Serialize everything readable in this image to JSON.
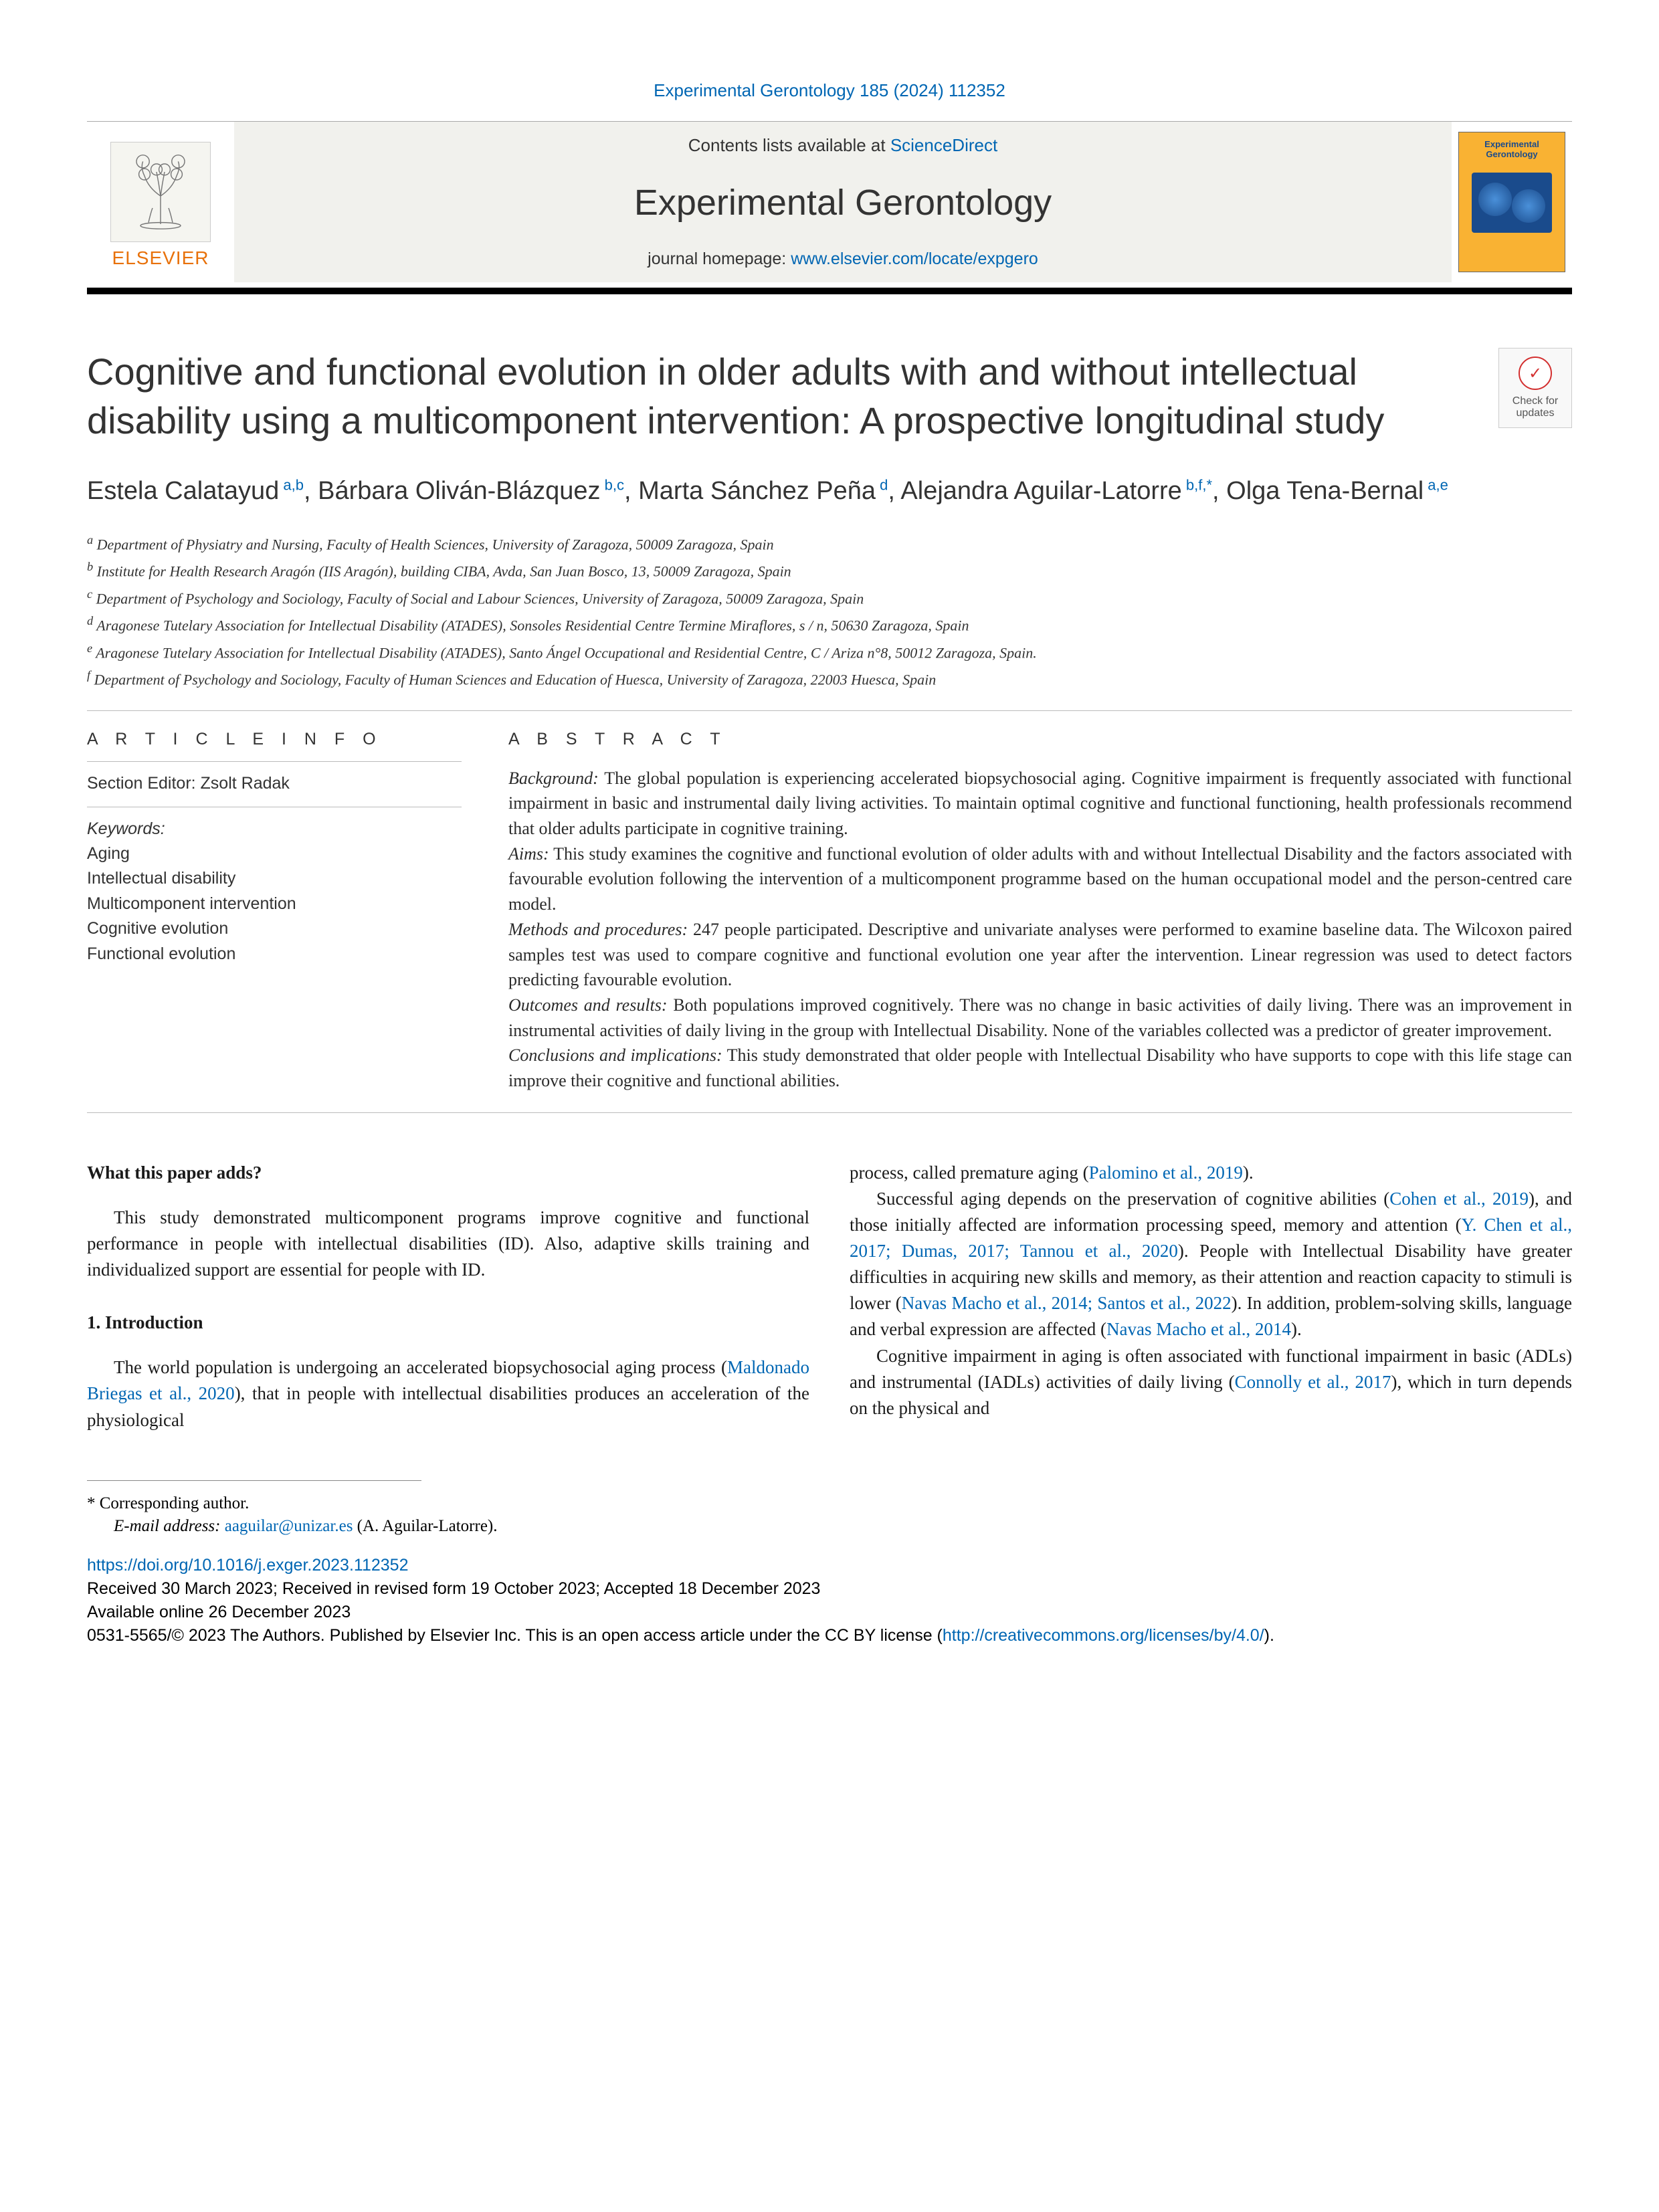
{
  "citation": "Experimental Gerontology 185 (2024) 112352",
  "header": {
    "contents_prefix": "Contents lists available at ",
    "contents_link": "ScienceDirect",
    "journal": "Experimental Gerontology",
    "homepage_prefix": "journal homepage: ",
    "homepage_link": "www.elsevier.com/locate/expgero",
    "publisher": "ELSEVIER",
    "cover_title": "Experimental Gerontology"
  },
  "updates_label": "Check for updates",
  "title": "Cognitive and functional evolution in older adults with and without intellectual disability using a multicomponent intervention: A prospective longitudinal study",
  "authors_html": "Estela Calatayud<sup> a,b</sup>, Bárbara Oliván-Blázquez<sup> b,c</sup>, Marta Sánchez Peña<sup> d</sup>, Alejandra Aguilar-Latorre<sup> b,f,*</sup>, Olga Tena-Bernal<sup> a,e</sup>",
  "affiliations": [
    "a Department of Physiatry and Nursing, Faculty of Health Sciences, University of Zaragoza, 50009 Zaragoza, Spain",
    "b Institute for Health Research Aragón (IIS Aragón), building CIBA, Avda, San Juan Bosco, 13, 50009 Zaragoza, Spain",
    "c Department of Psychology and Sociology, Faculty of Social and Labour Sciences, University of Zaragoza, 50009 Zaragoza, Spain",
    "d Aragonese Tutelary Association for Intellectual Disability (ATADES), Sonsoles Residential Centre Termine Miraflores, s / n, 50630 Zaragoza, Spain",
    "e Aragonese Tutelary Association for Intellectual Disability (ATADES), Santo Ángel Occupational and Residential Centre, C / Ariza n°8, 50012 Zaragoza, Spain.",
    "f Department of Psychology and Sociology, Faculty of Human Sciences and Education of Huesca, University of Zaragoza, 22003 Huesca, Spain"
  ],
  "info": {
    "heading": "A R T I C L E  I N F O",
    "editor_label": "Section Editor: Zsolt Radak",
    "keywords_label": "Keywords:",
    "keywords": [
      "Aging",
      "Intellectual disability",
      "Multicomponent intervention",
      "Cognitive evolution",
      "Functional evolution"
    ]
  },
  "abstract": {
    "heading": "A B S T R A C T",
    "sections": [
      {
        "label": "Background:",
        "text": " The global population is experiencing accelerated biopsychosocial aging. Cognitive impairment is frequently associated with functional impairment in basic and instrumental daily living activities. To maintain optimal cognitive and functional functioning, health professionals recommend that older adults participate in cognitive training."
      },
      {
        "label": "Aims:",
        "text": " This study examines the cognitive and functional evolution of older adults with and without Intellectual Disability and the factors associated with favourable evolution following the intervention of a multicomponent programme based on the human occupational model and the person-centred care model."
      },
      {
        "label": "Methods and procedures:",
        "text": " 247 people participated. Descriptive and univariate analyses were performed to examine baseline data. The Wilcoxon paired samples test was used to compare cognitive and functional evolution one year after the intervention. Linear regression was used to detect factors predicting favourable evolution."
      },
      {
        "label": "Outcomes and results:",
        "text": " Both populations improved cognitively. There was no change in basic activities of daily living. There was an improvement in instrumental activities of daily living in the group with Intellectual Disability. None of the variables collected was a predictor of greater improvement."
      },
      {
        "label": "Conclusions and implications:",
        "text": " This study demonstrated that older people with Intellectual Disability who have supports to cope with this life stage can improve their cognitive and functional abilities."
      }
    ]
  },
  "body": {
    "left": {
      "h1": "What this paper adds?",
      "p1": "This study demonstrated multicomponent programs improve cognitive and functional performance in people with intellectual disabilities (ID). Also, adaptive skills training and individualized support are essential for people with ID.",
      "h2": "1. Introduction",
      "p2_a": "The world population is undergoing an accelerated biopsychosocial aging process (",
      "p2_cite": "Maldonado Briegas et al., 2020",
      "p2_b": "), that in people with intellectual disabilities produces an acceleration of the physiological"
    },
    "right": {
      "p1_a": "process, called premature aging (",
      "p1_cite": "Palomino et al., 2019",
      "p1_b": ").",
      "p2": "Successful aging depends on the preservation of cognitive abilities (Cohen et al., 2019), and those initially affected are information processing speed, memory and attention (Y. Chen et al., 2017; Dumas, 2017; Tannou et al., 2020). People with Intellectual Disability have greater difficulties in acquiring new skills and memory, as their attention and reaction capacity to stimuli is lower (Navas Macho et al., 2014; Santos et al., 2022). In addition, problem-solving skills, language and verbal expression are affected (Navas Macho et al., 2014).",
      "p3": "Cognitive impairment in aging is often associated with functional impairment in basic (ADLs) and instrumental (IADLs) activities of daily living (Connolly et al., 2017), which in turn depends on the physical and"
    }
  },
  "footer": {
    "corresponding": "* Corresponding author.",
    "email_label": "E-mail address: ",
    "email": "aaguilar@unizar.es",
    "email_person": " (A. Aguilar-Latorre).",
    "doi": "https://doi.org/10.1016/j.exger.2023.112352",
    "received": "Received 30 March 2023; Received in revised form 19 October 2023; Accepted 18 December 2023",
    "available": "Available online 26 December 2023",
    "copyright_a": "0531-5565/© 2023 The Authors. Published by Elsevier Inc. This is an open access article under the CC BY license (",
    "license_link": "http://creativecommons.org/licenses/by/4.0/",
    "copyright_b": ")."
  },
  "colors": {
    "link": "#0066b3",
    "elsevier": "#e8710a",
    "cover_bg": "#f9b233",
    "header_bg": "#f1f1ed"
  },
  "typography": {
    "title_fontsize": 56,
    "authors_fontsize": 38,
    "body_fontsize": 27,
    "abstract_fontsize": 26
  }
}
